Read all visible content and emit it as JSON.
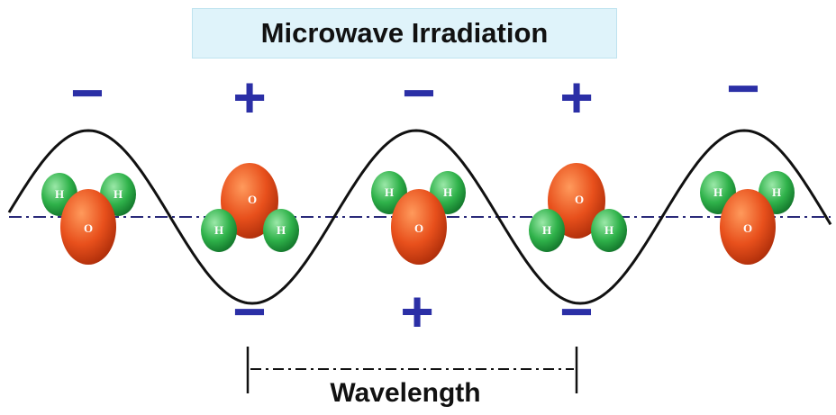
{
  "title": "Microwave Irradiation",
  "wavelength_label": "Wavelength",
  "charges": [
    "−",
    "+",
    "−",
    "+",
    "−",
    "−",
    "+",
    "−"
  ],
  "molecules": [
    {
      "orientation": "up",
      "atoms": {
        "oxygen": "O",
        "hydrogen_left": "H",
        "hydrogen_right": "H"
      }
    },
    {
      "orientation": "down",
      "atoms": {
        "oxygen": "O",
        "hydrogen_left": "H",
        "hydrogen_right": "H"
      }
    },
    {
      "orientation": "up",
      "atoms": {
        "oxygen": "O",
        "hydrogen_left": "H",
        "hydrogen_right": "H"
      }
    },
    {
      "orientation": "down",
      "atoms": {
        "oxygen": "O",
        "hydrogen_left": "H",
        "hydrogen_right": "H"
      }
    },
    {
      "orientation": "up",
      "atoms": {
        "oxygen": "O",
        "hydrogen_left": "H",
        "hydrogen_right": "H"
      }
    }
  ],
  "colors": {
    "charge": "#2b2fa6",
    "wave": "#111111",
    "axis": "#2a2a7a",
    "oxygen": "#e8501c",
    "hydrogen": "#2fb24a",
    "title_bg": "#dff3fa"
  }
}
